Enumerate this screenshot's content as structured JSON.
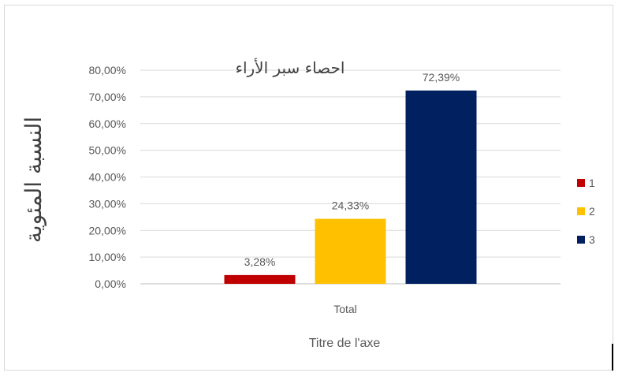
{
  "chart_data": {
    "type": "bar",
    "title": "احصاء سبر الأراء",
    "ylabel": "النسبة المئوية",
    "xlabel": "Titre de l'axe",
    "categories": [
      "Total"
    ],
    "series": [
      {
        "name": "1",
        "values": [
          3.28
        ],
        "label": "3,28%",
        "color": "#c00000"
      },
      {
        "name": "2",
        "values": [
          24.33
        ],
        "label": "24,33%",
        "color": "#ffc000"
      },
      {
        "name": "3",
        "values": [
          72.39
        ],
        "label": "72,39%",
        "color": "#002060"
      }
    ],
    "ylim": [
      0,
      80
    ],
    "yticks": [
      0,
      10,
      20,
      30,
      40,
      50,
      60,
      70,
      80
    ],
    "ytick_labels": [
      "0,00%",
      "10,00%",
      "20,00%",
      "30,00%",
      "40,00%",
      "50,00%",
      "60,00%",
      "70,00%",
      "80,00%"
    ],
    "grid": true,
    "legend": "right",
    "colors": {
      "grid": "#d9d9d9",
      "axis": "#bfbfbf",
      "text": "#595959",
      "title": "#404040"
    }
  }
}
